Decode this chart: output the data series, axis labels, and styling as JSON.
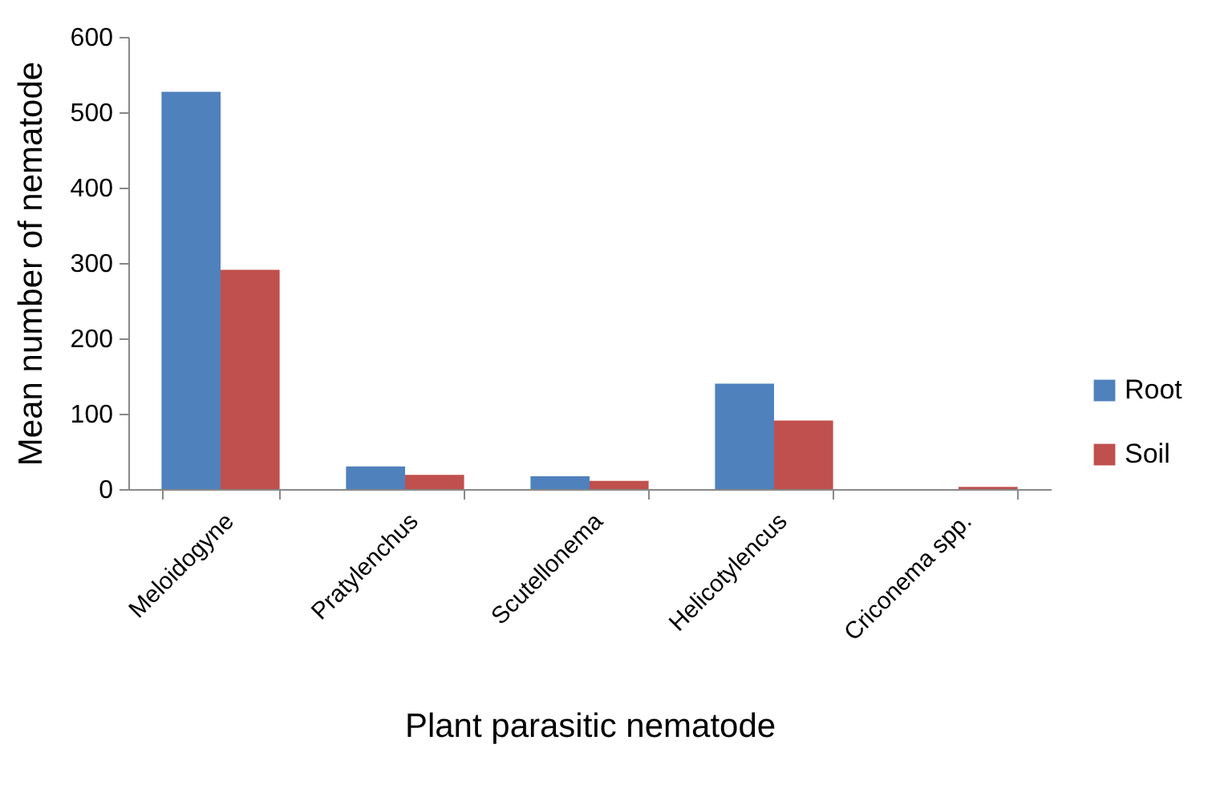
{
  "chart_data": {
    "type": "bar",
    "xlabel": "Plant parasitic nematode",
    "ylabel": "Mean number of nematode",
    "categories": [
      "Meloidogyne",
      "Pratylenchus",
      "Scutellonema",
      "Helicotylencus",
      "Criconema spp."
    ],
    "series": [
      {
        "name": "Root",
        "color": "#4f81bd",
        "values": [
          527,
          30,
          17,
          140,
          null
        ]
      },
      {
        "name": "Soil",
        "color": "#c0504d",
        "values": [
          291,
          19,
          11,
          91,
          3
        ]
      }
    ],
    "ylim": [
      0,
      600
    ],
    "yticks": [
      0,
      100,
      200,
      300,
      400,
      500,
      600
    ],
    "grid": false,
    "legend": "right"
  }
}
